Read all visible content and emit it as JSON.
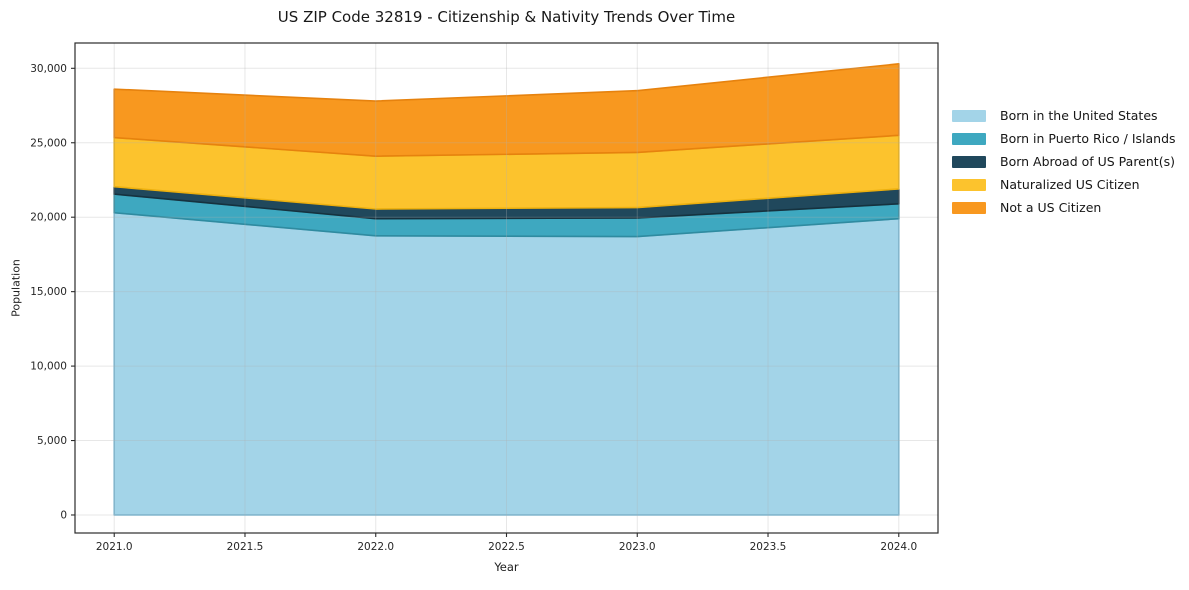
{
  "chart_data": {
    "type": "area",
    "stacked": true,
    "title": "US ZIP Code 32819 - Citizenship & Nativity Trends Over Time",
    "xlabel": "Year",
    "ylabel": "Population",
    "x": [
      2021,
      2022,
      2023,
      2024
    ],
    "series": [
      {
        "name": "Born in the United States",
        "color": "#a3d4e8",
        "edge": "#79b8d4",
        "values": [
          20300,
          18750,
          18700,
          19900
        ]
      },
      {
        "name": "Born in Puerto Rico / Islands",
        "color": "#3ea8c0",
        "edge": "#2f8ba0",
        "values": [
          1250,
          1150,
          1250,
          1000
        ]
      },
      {
        "name": "Born Abroad of US Parent(s)",
        "color": "#20485c",
        "edge": "#16323f",
        "values": [
          500,
          650,
          700,
          1000
        ]
      },
      {
        "name": "Naturalized US Citizen",
        "color": "#fcc32d",
        "edge": "#edb00e",
        "values": [
          3300,
          3550,
          3700,
          3600
        ]
      },
      {
        "name": "Not a US Citizen",
        "color": "#f8981f",
        "edge": "#e6820e",
        "values": [
          3250,
          3700,
          4150,
          4800
        ]
      }
    ],
    "totals": [
      28600,
      27800,
      28500,
      30300
    ],
    "xlim": [
      2020.85,
      2024.15
    ],
    "ylim": [
      -1210,
      31700
    ],
    "x_ticks": [
      {
        "v": 2021.0,
        "label": "2021.0"
      },
      {
        "v": 2021.5,
        "label": "2021.5"
      },
      {
        "v": 2022.0,
        "label": "2022.0"
      },
      {
        "v": 2022.5,
        "label": "2022.5"
      },
      {
        "v": 2023.0,
        "label": "2023.0"
      },
      {
        "v": 2023.5,
        "label": "2023.5"
      },
      {
        "v": 2024.0,
        "label": "2024.0"
      }
    ],
    "y_ticks": [
      {
        "v": 0,
        "label": "0"
      },
      {
        "v": 5000,
        "label": "5,000"
      },
      {
        "v": 10000,
        "label": "10,000"
      },
      {
        "v": 15000,
        "label": "15,000"
      },
      {
        "v": 20000,
        "label": "20,000"
      },
      {
        "v": 25000,
        "label": "25,000"
      },
      {
        "v": 30000,
        "label": "30,000"
      }
    ],
    "grid": true,
    "grid_color": "#b0b0b0",
    "spine_color": "#2b2b2b",
    "legend_position": "right-outside"
  }
}
